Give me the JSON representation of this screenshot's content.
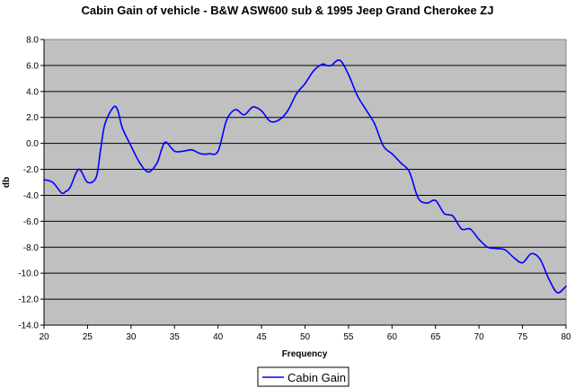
{
  "chart_data": {
    "type": "line",
    "title": "Cabin Gain of vehicle - B&W ASW600 sub & 1995 Jeep Grand Cherokee ZJ",
    "xlabel": "Frequency",
    "ylabel": "db",
    "xlim": [
      20,
      80
    ],
    "ylim": [
      -14,
      8
    ],
    "x_ticks": [
      "20",
      "25",
      "30",
      "35",
      "40",
      "45",
      "50",
      "55",
      "60",
      "65",
      "70",
      "75",
      "80"
    ],
    "y_ticks": [
      "-14.0",
      "-12.0",
      "-10.0",
      "-8.0",
      "-6.0",
      "-4.0",
      "-2.0",
      "0.0",
      "2.0",
      "4.0",
      "6.0",
      "8.0"
    ],
    "grid": "horizontal",
    "plot_background": "#c0c0c0",
    "legend_position": "bottom",
    "series": [
      {
        "name": "Cabin Gain",
        "color": "#0000ff",
        "x": [
          20,
          21,
          22,
          22.5,
          23,
          24,
          25,
          26,
          26.5,
          27,
          28,
          28.5,
          29,
          30,
          31,
          32,
          33,
          33.5,
          34,
          35,
          36,
          37,
          38,
          39,
          40,
          41,
          42,
          43,
          44,
          45,
          46,
          47,
          48,
          49,
          50,
          51,
          52,
          52.5,
          53,
          54,
          55,
          56,
          57,
          58,
          59,
          60,
          61,
          62,
          63,
          64,
          65,
          66,
          67,
          68,
          69,
          70,
          71,
          72,
          73,
          74,
          75,
          76,
          77,
          78,
          79,
          80
        ],
        "y": [
          -2.8,
          -3.0,
          -3.8,
          -3.7,
          -3.4,
          -2.0,
          -3.0,
          -2.6,
          -0.5,
          1.5,
          2.8,
          2.5,
          1.2,
          -0.2,
          -1.5,
          -2.2,
          -1.5,
          -0.5,
          0.1,
          -0.6,
          -0.6,
          -0.5,
          -0.8,
          -0.8,
          -0.6,
          1.8,
          2.6,
          2.2,
          2.8,
          2.5,
          1.7,
          1.8,
          2.5,
          3.8,
          4.6,
          5.6,
          6.1,
          6.0,
          6.0,
          6.4,
          5.3,
          3.7,
          2.6,
          1.5,
          -0.2,
          -0.8,
          -1.5,
          -2.2,
          -4.2,
          -4.6,
          -4.4,
          -5.4,
          -5.6,
          -6.6,
          -6.6,
          -7.4,
          -8.0,
          -8.1,
          -8.2,
          -8.8,
          -9.2,
          -8.5,
          -8.9,
          -10.4,
          -11.5,
          -11.0
        ]
      }
    ]
  }
}
